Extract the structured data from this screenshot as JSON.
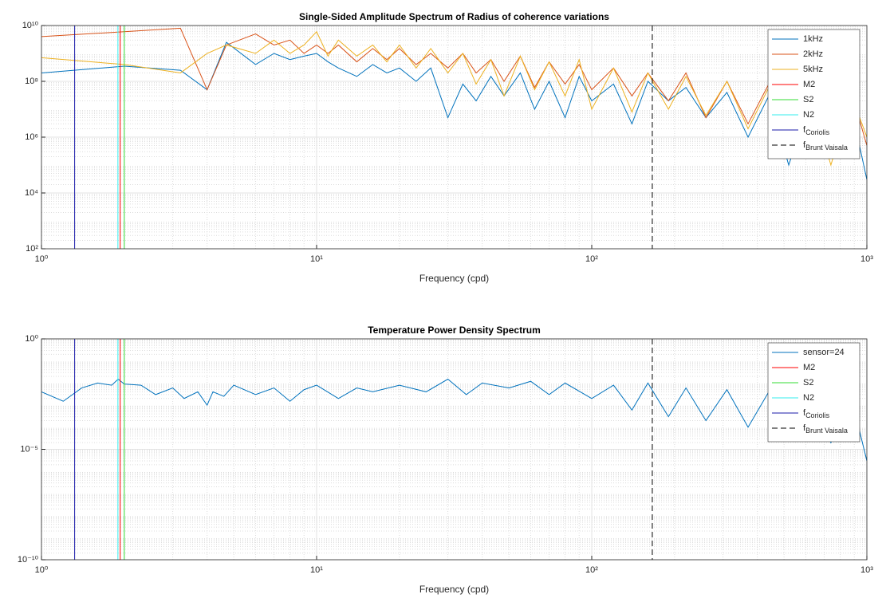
{
  "chart_data": [
    {
      "type": "line",
      "title": "Single-Sided Amplitude Spectrum of Radius of coherence variations",
      "xlabel": "Frequency (cpd)",
      "x_log": true,
      "y_log": true,
      "grid": true,
      "minor_grid": true,
      "legend": "northeast",
      "xlim": [
        1,
        1000
      ],
      "ylim": [
        100,
        10000000000
      ],
      "xticks": [
        {
          "value": 1,
          "label": "10⁰"
        },
        {
          "value": 10,
          "label": "10¹"
        },
        {
          "value": 100,
          "label": "10²"
        },
        {
          "value": 1000,
          "label": "10³"
        }
      ],
      "yticks": [
        {
          "value": 100,
          "label": "10²"
        },
        {
          "value": 10000,
          "label": "10⁴"
        },
        {
          "value": 1000000,
          "label": "10⁶"
        },
        {
          "value": 100000000,
          "label": "10⁸"
        },
        {
          "value": 10000000000,
          "label": "10¹⁰"
        }
      ],
      "x": [
        1,
        2,
        3.2,
        4,
        4.7,
        6,
        7,
        8,
        9,
        10,
        11,
        12,
        14,
        16,
        18,
        20,
        23,
        26,
        30,
        34,
        38,
        43,
        48,
        55,
        62,
        70,
        80,
        90,
        100,
        120,
        140,
        160,
        190,
        220,
        260,
        310,
        370,
        440,
        520,
        620,
        740,
        880,
        1000
      ],
      "series": [
        {
          "name": "1kHz",
          "color": "#0072BD",
          "values": [
            200000000.0,
            350000000.0,
            250000000.0,
            50000000.0,
            2500000000.0,
            400000000.0,
            1000000000.0,
            600000000.0,
            800000000.0,
            1000000000.0,
            500000000.0,
            300000000.0,
            150000000.0,
            400000000.0,
            200000000.0,
            300000000.0,
            100000000.0,
            300000000.0,
            5000000.0,
            80000000.0,
            20000000.0,
            150000000.0,
            30000000.0,
            200000000.0,
            10000000.0,
            100000000.0,
            5000000.0,
            150000000.0,
            20000000.0,
            80000000.0,
            3000000.0,
            100000000.0,
            20000000.0,
            60000000.0,
            5000000.0,
            40000000.0,
            1000000.0,
            30000000.0,
            100000.0,
            20000000.0,
            200000.0,
            10000000.0,
            30000.0
          ]
        },
        {
          "name": "2kHz",
          "color": "#D95319",
          "values": [
            4000000000.0,
            6000000000.0,
            8000000000.0,
            50000000.0,
            2000000000.0,
            5000000000.0,
            2000000000.0,
            3000000000.0,
            1000000000.0,
            2000000000.0,
            1000000000.0,
            2000000000.0,
            500000000.0,
            1500000000.0,
            600000000.0,
            1500000000.0,
            400000000.0,
            1000000000.0,
            300000000.0,
            1000000000.0,
            200000000.0,
            600000000.0,
            100000000.0,
            800000000.0,
            60000000.0,
            500000000.0,
            80000000.0,
            400000000.0,
            50000000.0,
            300000000.0,
            30000000.0,
            200000000.0,
            20000000.0,
            200000000.0,
            5000000.0,
            100000000.0,
            3000000.0,
            80000000.0,
            1000000.0,
            60000000.0,
            200000.0,
            40000000.0,
            500000.0
          ]
        },
        {
          "name": "5kHz",
          "color": "#EDB120",
          "values": [
            700000000.0,
            400000000.0,
            200000000.0,
            1000000000.0,
            2000000000.0,
            1000000000.0,
            3000000000.0,
            1000000000.0,
            2000000000.0,
            6000000000.0,
            800000000.0,
            3000000000.0,
            800000000.0,
            2000000000.0,
            500000000.0,
            2000000000.0,
            300000000.0,
            1500000000.0,
            200000000.0,
            1000000000.0,
            80000000.0,
            600000000.0,
            30000000.0,
            800000000.0,
            50000000.0,
            500000000.0,
            30000000.0,
            600000000.0,
            10000000.0,
            300000000.0,
            8000000.0,
            200000000.0,
            10000000.0,
            150000000.0,
            6000000.0,
            100000000.0,
            2000000.0,
            60000000.0,
            500000.0,
            40000000.0,
            100000.0,
            30000000.0,
            1000000.0
          ]
        }
      ],
      "reference_lines": [
        {
          "name": "M2",
          "color": "#ff0000",
          "x": 1.9324
        },
        {
          "name": "S2",
          "color": "#33dd33",
          "x": 2
        },
        {
          "name": "N2",
          "color": "#33eeee",
          "x": 1.896
        },
        {
          "name": "f",
          "name_sub": "Coriolis",
          "color": "#1a1aaa",
          "x": 1.32
        },
        {
          "name": "f",
          "name_sub": "Brunt Vaisala",
          "color": "#000000",
          "dash": true,
          "x": 166
        }
      ]
    },
    {
      "type": "line",
      "title": "Temperature Power Density Spectrum",
      "xlabel": "Frequency (cpd)",
      "x_log": true,
      "y_log": true,
      "grid": true,
      "minor_grid": true,
      "legend": "northeast",
      "xlim": [
        1,
        1000
      ],
      "ylim": [
        1e-10,
        1
      ],
      "xticks": [
        {
          "value": 1,
          "label": "10⁰"
        },
        {
          "value": 10,
          "label": "10¹"
        },
        {
          "value": 100,
          "label": "10²"
        },
        {
          "value": 1000,
          "label": "10³"
        }
      ],
      "yticks": [
        {
          "value": 1e-10,
          "label": "10⁻¹⁰"
        },
        {
          "value": 1e-05,
          "label": "10⁻⁵"
        },
        {
          "value": 1,
          "label": "10⁰"
        }
      ],
      "x": [
        1,
        1.2,
        1.4,
        1.6,
        1.8,
        1.9,
        2,
        2.3,
        2.6,
        3,
        3.3,
        3.7,
        4,
        4.2,
        4.6,
        5,
        6,
        7,
        8,
        9,
        10,
        12,
        14,
        16,
        20,
        25,
        30,
        35,
        40,
        50,
        60,
        70,
        80,
        100,
        120,
        140,
        160,
        190,
        220,
        260,
        310,
        370,
        440,
        520,
        620,
        740,
        880,
        1000
      ],
      "series": [
        {
          "name": "sensor=24",
          "color": "#0072BD",
          "values": [
            0.004,
            0.0015,
            0.006,
            0.01,
            0.008,
            0.015,
            0.009,
            0.008,
            0.003,
            0.006,
            0.002,
            0.004,
            0.001,
            0.004,
            0.0025,
            0.008,
            0.003,
            0.006,
            0.0015,
            0.005,
            0.008,
            0.002,
            0.006,
            0.004,
            0.008,
            0.004,
            0.015,
            0.003,
            0.01,
            0.006,
            0.012,
            0.003,
            0.01,
            0.002,
            0.008,
            0.0006,
            0.01,
            0.0003,
            0.006,
            0.0002,
            0.005,
            0.0001,
            0.004,
            5e-05,
            0.003,
            2e-05,
            0.002,
            3e-06
          ]
        }
      ],
      "reference_lines": [
        {
          "name": "M2",
          "color": "#ff0000",
          "x": 1.9324
        },
        {
          "name": "S2",
          "color": "#33dd33",
          "x": 2
        },
        {
          "name": "N2",
          "color": "#33eeee",
          "x": 1.896
        },
        {
          "name": "f",
          "name_sub": "Coriolis",
          "color": "#1a1aaa",
          "x": 1.32
        },
        {
          "name": "f",
          "name_sub": "Brunt Vaisala",
          "color": "#000000",
          "dash": true,
          "x": 166
        }
      ]
    }
  ]
}
